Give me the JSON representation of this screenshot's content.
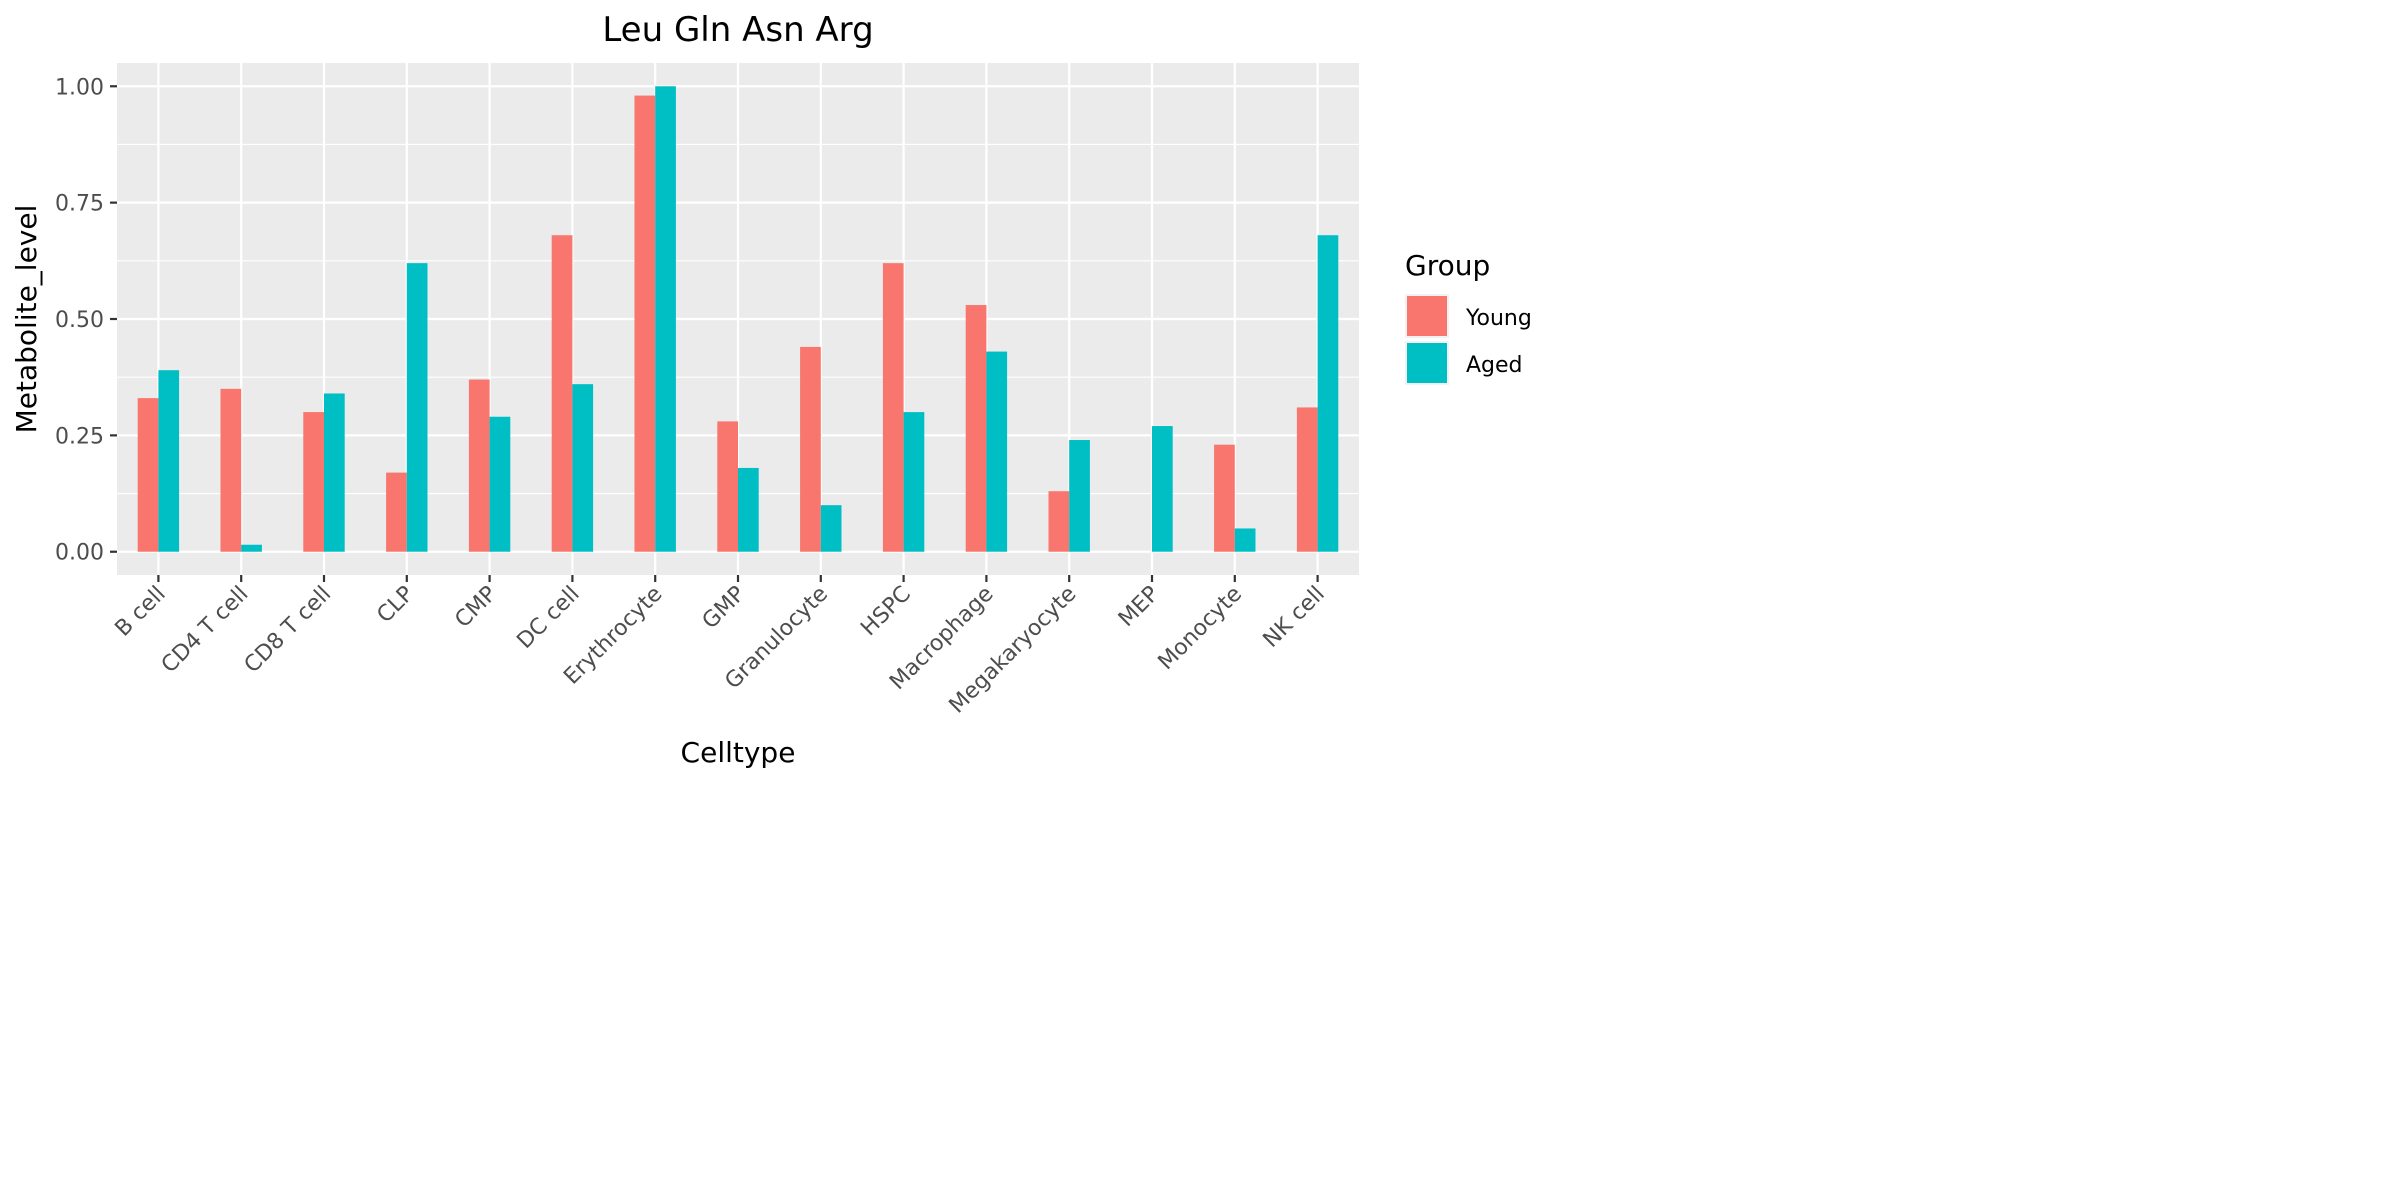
{
  "chart_data": {
    "type": "bar",
    "title": "Leu Gln Asn Arg",
    "xlabel": "Celltype",
    "ylabel": "Metabolite_level",
    "ylim": [
      -0.05,
      1.05
    ],
    "yticks": [
      0,
      0.25,
      0.5,
      0.75,
      1.0
    ],
    "ytick_labels": [
      "0.00",
      "0.25",
      "0.50",
      "0.75",
      "1.00"
    ],
    "grid": true,
    "legend_title": "Group",
    "legend_position": "right",
    "categories": [
      "B cell",
      "CD4 T cell",
      "CD8 T cell",
      "CLP",
      "CMP",
      "DC cell",
      "Erythrocyte",
      "GMP",
      "Granulocyte",
      "HSPC",
      "Macrophage",
      "Megakaryocyte",
      "MEP",
      "Monocyte",
      "NK cell"
    ],
    "series": [
      {
        "name": "Young",
        "color": "#F8766D",
        "values": [
          0.33,
          0.35,
          0.3,
          0.17,
          0.37,
          0.68,
          0.98,
          0.28,
          0.44,
          0.62,
          0.53,
          0.13,
          0.0,
          0.23,
          0.31
        ]
      },
      {
        "name": "Aged",
        "color": "#00BFC4",
        "values": [
          0.39,
          0.015,
          0.34,
          0.62,
          0.29,
          0.36,
          1.0,
          0.18,
          0.1,
          0.3,
          0.43,
          0.24,
          0.27,
          0.05,
          0.68
        ]
      }
    ]
  }
}
